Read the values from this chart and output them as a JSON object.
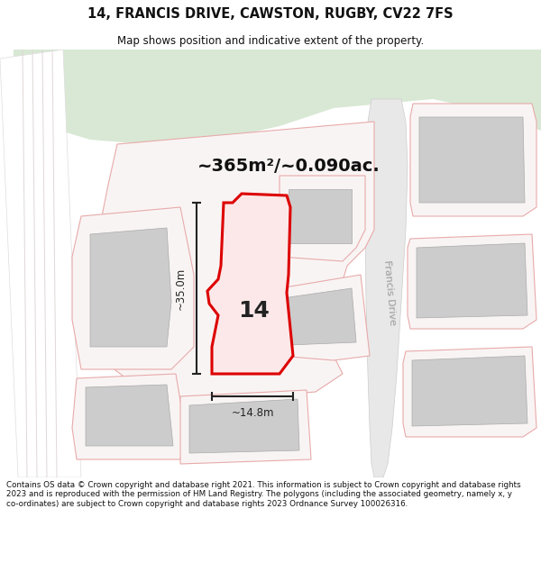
{
  "title": "14, FRANCIS DRIVE, CAWSTON, RUGBY, CV22 7FS",
  "subtitle": "Map shows position and indicative extent of the property.",
  "area_text": "~365m²/~0.090ac.",
  "dim_width": "~14.8m",
  "dim_height": "~35.0m",
  "label": "14",
  "label_road": "Francis Drive",
  "footer": "Contains OS data © Crown copyright and database right 2021. This information is subject to Crown copyright and database rights 2023 and is reproduced with the permission of HM Land Registry. The polygons (including the associated geometry, namely x, y co-ordinates) are subject to Crown copyright and database rights 2023 Ordnance Survey 100026316.",
  "bg_color": "#ffffff",
  "map_bg": "#ffffff",
  "green_color": "#d8e8d4",
  "road_color": "#e8e8e8",
  "plot_fill": "#f9f4f4",
  "plot_outline": "#e8aaaa",
  "highlight_fill": "#fce8e8",
  "highlight_outline": "#dd0000",
  "building_fill": "#cccccc",
  "building_outline": "#aaaaaa",
  "dim_color": "#222222",
  "title_color": "#111111",
  "footer_color": "#111111"
}
